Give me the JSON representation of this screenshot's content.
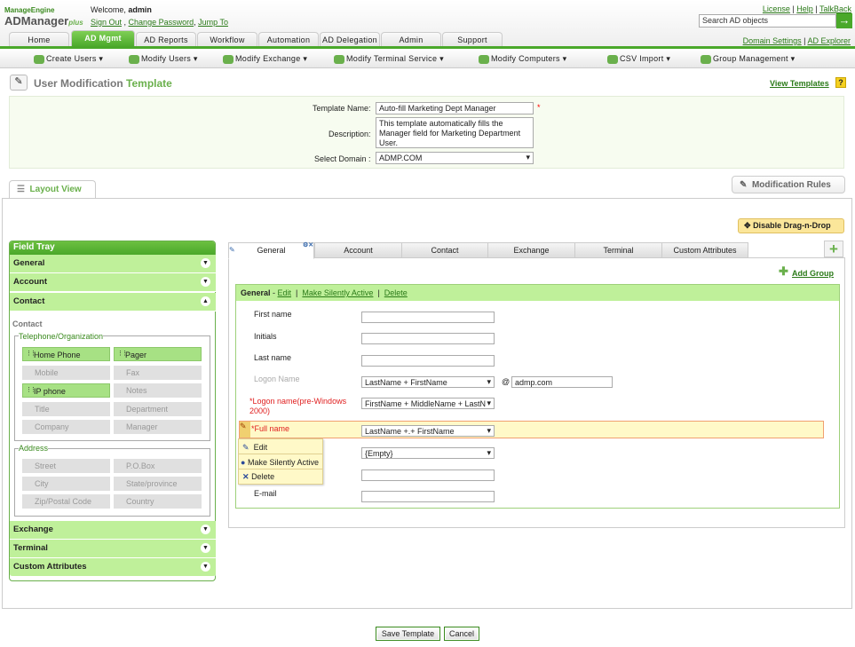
{
  "brand": {
    "company": "ManageEngine",
    "product": "ADManager",
    "suffix": "plus"
  },
  "user": {
    "welcome": "Welcome,",
    "name": "admin",
    "sign_out": "Sign Out",
    "change_password": "Change Password",
    "jump_to": "Jump To"
  },
  "top_links": {
    "license": "License",
    "help": "Help",
    "talkback": "TalkBack",
    "domain_settings": "Domain Settings",
    "ad_explorer": "AD Explorer"
  },
  "search": {
    "placeholder": "Search AD objects"
  },
  "tabs": [
    "Home",
    "AD Mgmt",
    "AD Reports",
    "Workflow",
    "Automation",
    "AD Delegation",
    "Admin",
    "Support"
  ],
  "subnav": [
    "Create Users",
    "Modify Users",
    "Modify Exchange",
    "Modify Terminal Service",
    "Modify Computers",
    "CSV Import",
    "Group Management"
  ],
  "page": {
    "title_a": "User Modification",
    "title_b": "Template",
    "view_templates": "View Templates",
    "help": "?"
  },
  "form": {
    "name_label": "Template Name:",
    "name_value": "Auto-fill Marketing Dept Manager",
    "desc_label": "Description:",
    "desc_value": "This template automatically fills the Manager field for Marketing Department User.",
    "domain_label": "Select Domain :",
    "domain_value": "ADMP.COM"
  },
  "layout_view": "Layout View",
  "modification_rules": "Modification Rules",
  "disable_dnd": "Disable Drag-n-Drop",
  "tray": {
    "title": "Field Tray",
    "sections": [
      "General",
      "Account",
      "Contact",
      "Exchange",
      "Terminal",
      "Custom Attributes"
    ],
    "contact_heading": "Contact",
    "tel_group": "Telephone/Organization",
    "tel_fields": [
      "Home Phone",
      "Pager",
      "Mobile",
      "Fax",
      "IP phone",
      "Notes",
      "Title",
      "Department",
      "Company",
      "Manager"
    ],
    "addr_group": "Address",
    "addr_fields": [
      "Street",
      "P.O.Box",
      "City",
      "State/province",
      "Zip/Postal Code",
      "Country"
    ]
  },
  "form_tabs": [
    "General",
    "Account",
    "Contact",
    "Exchange",
    "Terminal",
    "Custom Attributes"
  ],
  "add_group": "Add Group",
  "group": {
    "title": "General",
    "edit": "Edit",
    "silent": "Make Silently Active",
    "delete": "Delete"
  },
  "fields": {
    "first": "First name",
    "initials": "Initials",
    "last": "Last name",
    "logon": "Logon Name",
    "logon_value": "LastName + FirstName",
    "at": "@",
    "domain": "admp.com",
    "pre2000": "Logon name(pre-Windows 2000)",
    "pre2000_value": "FirstName + MiddleName + LastN",
    "full": "Full name",
    "full_value": "LastName +.+ FirstName",
    "empty": "{Empty}",
    "email": "E-mail"
  },
  "context_menu": [
    "Edit",
    "Make Silently Active",
    "Delete"
  ],
  "buttons": {
    "save": "Save Template",
    "cancel": "Cancel"
  }
}
